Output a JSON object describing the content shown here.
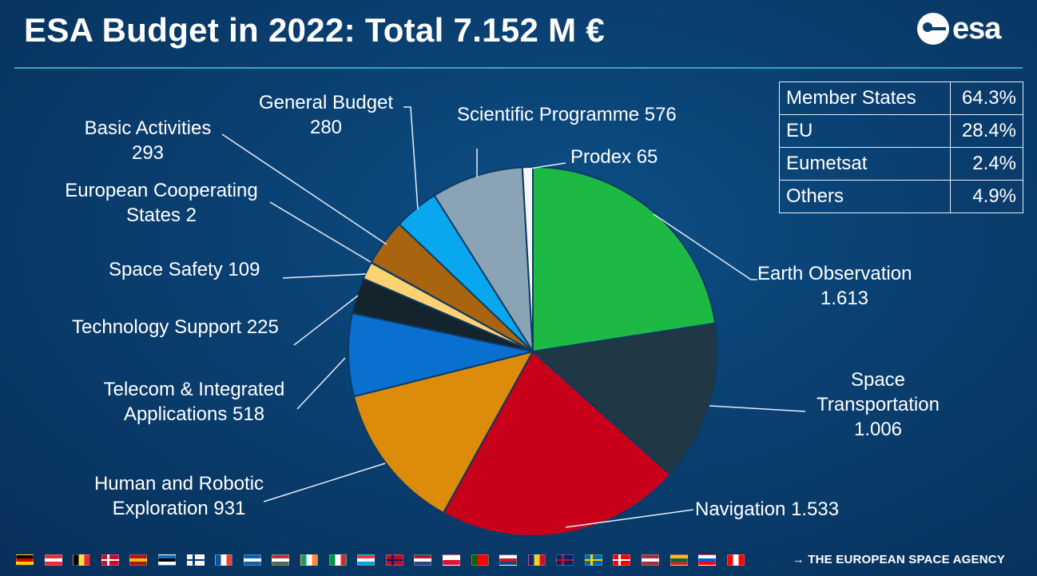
{
  "header": {
    "title": "ESA Budget in 2022: Total 7.152 M €",
    "logo_text": "esa"
  },
  "chart_data": {
    "type": "pie",
    "title": "ESA Budget in 2022: Total 7.152 M €",
    "start_angle_deg": 0,
    "direction": "clockwise",
    "slices": [
      {
        "name": "Earth Observation",
        "value": 1613,
        "value_label": "1.613",
        "color": "#1db944"
      },
      {
        "name": "Space Transportation",
        "value": 1006,
        "value_label": "1.006",
        "color": "#1f3843"
      },
      {
        "name": "Navigation",
        "value": 1533,
        "value_label": "1.533",
        "color": "#c8001a"
      },
      {
        "name": "Human and Robotic Exploration",
        "value": 931,
        "value_label": "931",
        "color": "#dc8b0b"
      },
      {
        "name": "Telecom & Integrated Applications",
        "value": 518,
        "value_label": "518",
        "color": "#0a70d0"
      },
      {
        "name": "Technology Support",
        "value": 225,
        "value_label": "225",
        "color": "#13242c"
      },
      {
        "name": "Space Safety",
        "value": 109,
        "value_label": "109",
        "color": "#ffd271"
      },
      {
        "name": "European Cooperating States",
        "value": 2,
        "value_label": "2",
        "color": "#f3cf5a"
      },
      {
        "name": "Basic Activities",
        "value": 293,
        "value_label": "293",
        "color": "#a8640f"
      },
      {
        "name": "General Budget",
        "value": 280,
        "value_label": "280",
        "color": "#08a7ee"
      },
      {
        "name": "Scientific Programme",
        "value": 576,
        "value_label": "576",
        "color": "#8aa3b5"
      },
      {
        "name": "Prodex",
        "value": 65,
        "value_label": "65",
        "color": "#f6f7f8"
      }
    ]
  },
  "labels": {
    "earth_observation": [
      "Earth Observation",
      "1.613"
    ],
    "space_transportation": [
      "Space",
      "Transportation",
      "1.006"
    ],
    "navigation": "Navigation 1.533",
    "human_robotic": [
      "Human and Robotic",
      "Exploration 931"
    ],
    "telecom": [
      "Telecom & Integrated",
      "Applications 518"
    ],
    "technology_support": "Technology Support 225",
    "space_safety": "Space Safety 109",
    "european_cooperating": [
      "European Cooperating",
      "States 2"
    ],
    "basic_activities": [
      "Basic Activities",
      "293"
    ],
    "general_budget": [
      "General Budget",
      "280"
    ],
    "scientific_programme": "Scientific Programme 576",
    "prodex": "Prodex 65"
  },
  "funding_table": {
    "rows": [
      {
        "source": "Member States",
        "share": "64.3%"
      },
      {
        "source": "EU",
        "share": "28.4%"
      },
      {
        "source": "Eumetsat",
        "share": "2.4%"
      },
      {
        "source": "Others",
        "share": "4.9%"
      }
    ]
  },
  "footer": {
    "agency": "→ THE EUROPEAN SPACE AGENCY",
    "flags": [
      {
        "name": "germany",
        "colors": [
          "#000000",
          "#dd0000",
          "#ffce00"
        ],
        "dir": "h"
      },
      {
        "name": "austria",
        "colors": [
          "#ed2939",
          "#ffffff",
          "#ed2939"
        ],
        "dir": "h"
      },
      {
        "name": "belgium",
        "colors": [
          "#000000",
          "#fae042",
          "#ed2939"
        ],
        "dir": "v"
      },
      {
        "name": "denmark",
        "colors": [
          "#c60c30",
          "#ffffff"
        ],
        "dir": "cross"
      },
      {
        "name": "spain",
        "colors": [
          "#aa151b",
          "#f1bf00",
          "#aa151b"
        ],
        "dir": "h"
      },
      {
        "name": "estonia",
        "colors": [
          "#0072ce",
          "#000000",
          "#ffffff"
        ],
        "dir": "h"
      },
      {
        "name": "finland",
        "colors": [
          "#ffffff",
          "#003580"
        ],
        "dir": "cross"
      },
      {
        "name": "france",
        "colors": [
          "#0055a4",
          "#ffffff",
          "#ef4135"
        ],
        "dir": "v"
      },
      {
        "name": "greece",
        "colors": [
          "#0d5eaf",
          "#ffffff",
          "#0d5eaf"
        ],
        "dir": "h"
      },
      {
        "name": "hungary",
        "colors": [
          "#ce2939",
          "#ffffff",
          "#477050"
        ],
        "dir": "h"
      },
      {
        "name": "ireland",
        "colors": [
          "#169b62",
          "#ffffff",
          "#ff883e"
        ],
        "dir": "v"
      },
      {
        "name": "italy",
        "colors": [
          "#009246",
          "#ffffff",
          "#ce2b37"
        ],
        "dir": "v"
      },
      {
        "name": "luxembourg",
        "colors": [
          "#ef3340",
          "#ffffff",
          "#00a3e0"
        ],
        "dir": "h"
      },
      {
        "name": "norway",
        "colors": [
          "#ba0c2f",
          "#00205b"
        ],
        "dir": "cross"
      },
      {
        "name": "netherlands",
        "colors": [
          "#ae1c28",
          "#ffffff",
          "#21468b"
        ],
        "dir": "h"
      },
      {
        "name": "poland",
        "colors": [
          "#ffffff",
          "#dc143c"
        ],
        "dir": "h"
      },
      {
        "name": "portugal",
        "colors": [
          "#006600",
          "#ff0000",
          "#ff0000"
        ],
        "dir": "v"
      },
      {
        "name": "czechia",
        "colors": [
          "#ffffff",
          "#d7141a",
          "#11457e"
        ],
        "dir": "h"
      },
      {
        "name": "romania",
        "colors": [
          "#002b7f",
          "#fcd116",
          "#ce1126"
        ],
        "dir": "v"
      },
      {
        "name": "united-kingdom",
        "colors": [
          "#012169",
          "#c8102e"
        ],
        "dir": "cross"
      },
      {
        "name": "sweden",
        "colors": [
          "#006aa7",
          "#fecc00"
        ],
        "dir": "cross"
      },
      {
        "name": "switzerland",
        "colors": [
          "#ff0000",
          "#ffffff"
        ],
        "dir": "cross"
      },
      {
        "name": "latvia",
        "colors": [
          "#9e3039",
          "#ffffff",
          "#9e3039"
        ],
        "dir": "h"
      },
      {
        "name": "lithuania",
        "colors": [
          "#fdb913",
          "#006a44",
          "#c1272d"
        ],
        "dir": "h"
      },
      {
        "name": "slovenia",
        "colors": [
          "#ffffff",
          "#005ce6",
          "#ff0000"
        ],
        "dir": "h"
      },
      {
        "name": "canada",
        "colors": [
          "#ff0000",
          "#ffffff",
          "#ff0000"
        ],
        "dir": "v"
      }
    ]
  }
}
